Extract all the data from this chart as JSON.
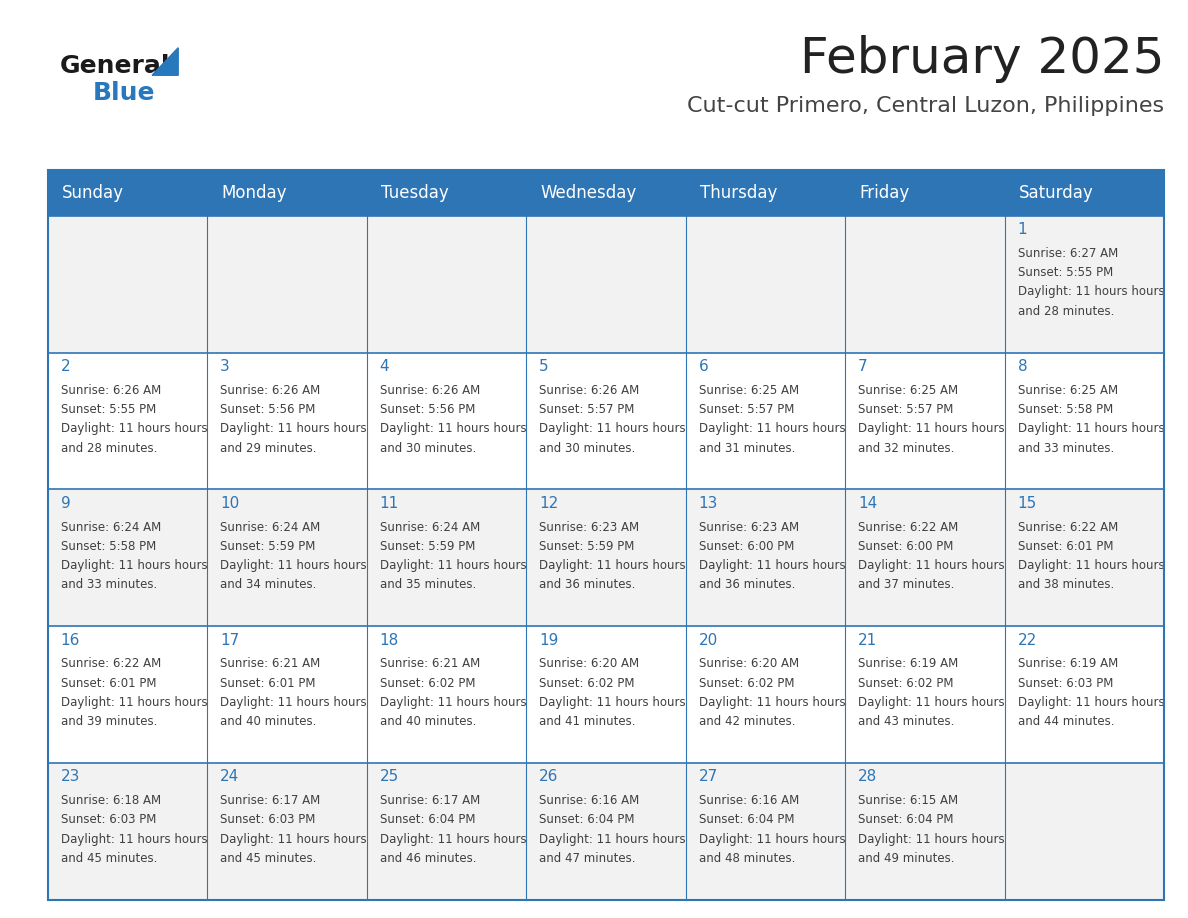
{
  "title": "February 2025",
  "subtitle": "Cut-cut Primero, Central Luzon, Philippines",
  "days_of_week": [
    "Sunday",
    "Monday",
    "Tuesday",
    "Wednesday",
    "Thursday",
    "Friday",
    "Saturday"
  ],
  "header_bg": "#2E75B6",
  "header_text": "#FFFFFF",
  "cell_bg_light": "#F2F2F2",
  "cell_bg_white": "#FFFFFF",
  "border_color": "#2E75B6",
  "day_num_color": "#2E75B6",
  "cell_text_color": "#404040",
  "title_color": "#222222",
  "subtitle_color": "#444444",
  "logo_general_color": "#1A1A1A",
  "logo_blue_color": "#2878BE",
  "calendar": [
    [
      null,
      null,
      null,
      null,
      null,
      null,
      {
        "day": 1,
        "sunrise": "6:27 AM",
        "sunset": "5:55 PM",
        "daylight": "11 hours and 28 minutes."
      }
    ],
    [
      {
        "day": 2,
        "sunrise": "6:26 AM",
        "sunset": "5:55 PM",
        "daylight": "11 hours and 28 minutes."
      },
      {
        "day": 3,
        "sunrise": "6:26 AM",
        "sunset": "5:56 PM",
        "daylight": "11 hours and 29 minutes."
      },
      {
        "day": 4,
        "sunrise": "6:26 AM",
        "sunset": "5:56 PM",
        "daylight": "11 hours and 30 minutes."
      },
      {
        "day": 5,
        "sunrise": "6:26 AM",
        "sunset": "5:57 PM",
        "daylight": "11 hours and 30 minutes."
      },
      {
        "day": 6,
        "sunrise": "6:25 AM",
        "sunset": "5:57 PM",
        "daylight": "11 hours and 31 minutes."
      },
      {
        "day": 7,
        "sunrise": "6:25 AM",
        "sunset": "5:57 PM",
        "daylight": "11 hours and 32 minutes."
      },
      {
        "day": 8,
        "sunrise": "6:25 AM",
        "sunset": "5:58 PM",
        "daylight": "11 hours and 33 minutes."
      }
    ],
    [
      {
        "day": 9,
        "sunrise": "6:24 AM",
        "sunset": "5:58 PM",
        "daylight": "11 hours and 33 minutes."
      },
      {
        "day": 10,
        "sunrise": "6:24 AM",
        "sunset": "5:59 PM",
        "daylight": "11 hours and 34 minutes."
      },
      {
        "day": 11,
        "sunrise": "6:24 AM",
        "sunset": "5:59 PM",
        "daylight": "11 hours and 35 minutes."
      },
      {
        "day": 12,
        "sunrise": "6:23 AM",
        "sunset": "5:59 PM",
        "daylight": "11 hours and 36 minutes."
      },
      {
        "day": 13,
        "sunrise": "6:23 AM",
        "sunset": "6:00 PM",
        "daylight": "11 hours and 36 minutes."
      },
      {
        "day": 14,
        "sunrise": "6:22 AM",
        "sunset": "6:00 PM",
        "daylight": "11 hours and 37 minutes."
      },
      {
        "day": 15,
        "sunrise": "6:22 AM",
        "sunset": "6:01 PM",
        "daylight": "11 hours and 38 minutes."
      }
    ],
    [
      {
        "day": 16,
        "sunrise": "6:22 AM",
        "sunset": "6:01 PM",
        "daylight": "11 hours and 39 minutes."
      },
      {
        "day": 17,
        "sunrise": "6:21 AM",
        "sunset": "6:01 PM",
        "daylight": "11 hours and 40 minutes."
      },
      {
        "day": 18,
        "sunrise": "6:21 AM",
        "sunset": "6:02 PM",
        "daylight": "11 hours and 40 minutes."
      },
      {
        "day": 19,
        "sunrise": "6:20 AM",
        "sunset": "6:02 PM",
        "daylight": "11 hours and 41 minutes."
      },
      {
        "day": 20,
        "sunrise": "6:20 AM",
        "sunset": "6:02 PM",
        "daylight": "11 hours and 42 minutes."
      },
      {
        "day": 21,
        "sunrise": "6:19 AM",
        "sunset": "6:02 PM",
        "daylight": "11 hours and 43 minutes."
      },
      {
        "day": 22,
        "sunrise": "6:19 AM",
        "sunset": "6:03 PM",
        "daylight": "11 hours and 44 minutes."
      }
    ],
    [
      {
        "day": 23,
        "sunrise": "6:18 AM",
        "sunset": "6:03 PM",
        "daylight": "11 hours and 45 minutes."
      },
      {
        "day": 24,
        "sunrise": "6:17 AM",
        "sunset": "6:03 PM",
        "daylight": "11 hours and 45 minutes."
      },
      {
        "day": 25,
        "sunrise": "6:17 AM",
        "sunset": "6:04 PM",
        "daylight": "11 hours and 46 minutes."
      },
      {
        "day": 26,
        "sunrise": "6:16 AM",
        "sunset": "6:04 PM",
        "daylight": "11 hours and 47 minutes."
      },
      {
        "day": 27,
        "sunrise": "6:16 AM",
        "sunset": "6:04 PM",
        "daylight": "11 hours and 48 minutes."
      },
      {
        "day": 28,
        "sunrise": "6:15 AM",
        "sunset": "6:04 PM",
        "daylight": "11 hours and 49 minutes."
      },
      null
    ]
  ]
}
